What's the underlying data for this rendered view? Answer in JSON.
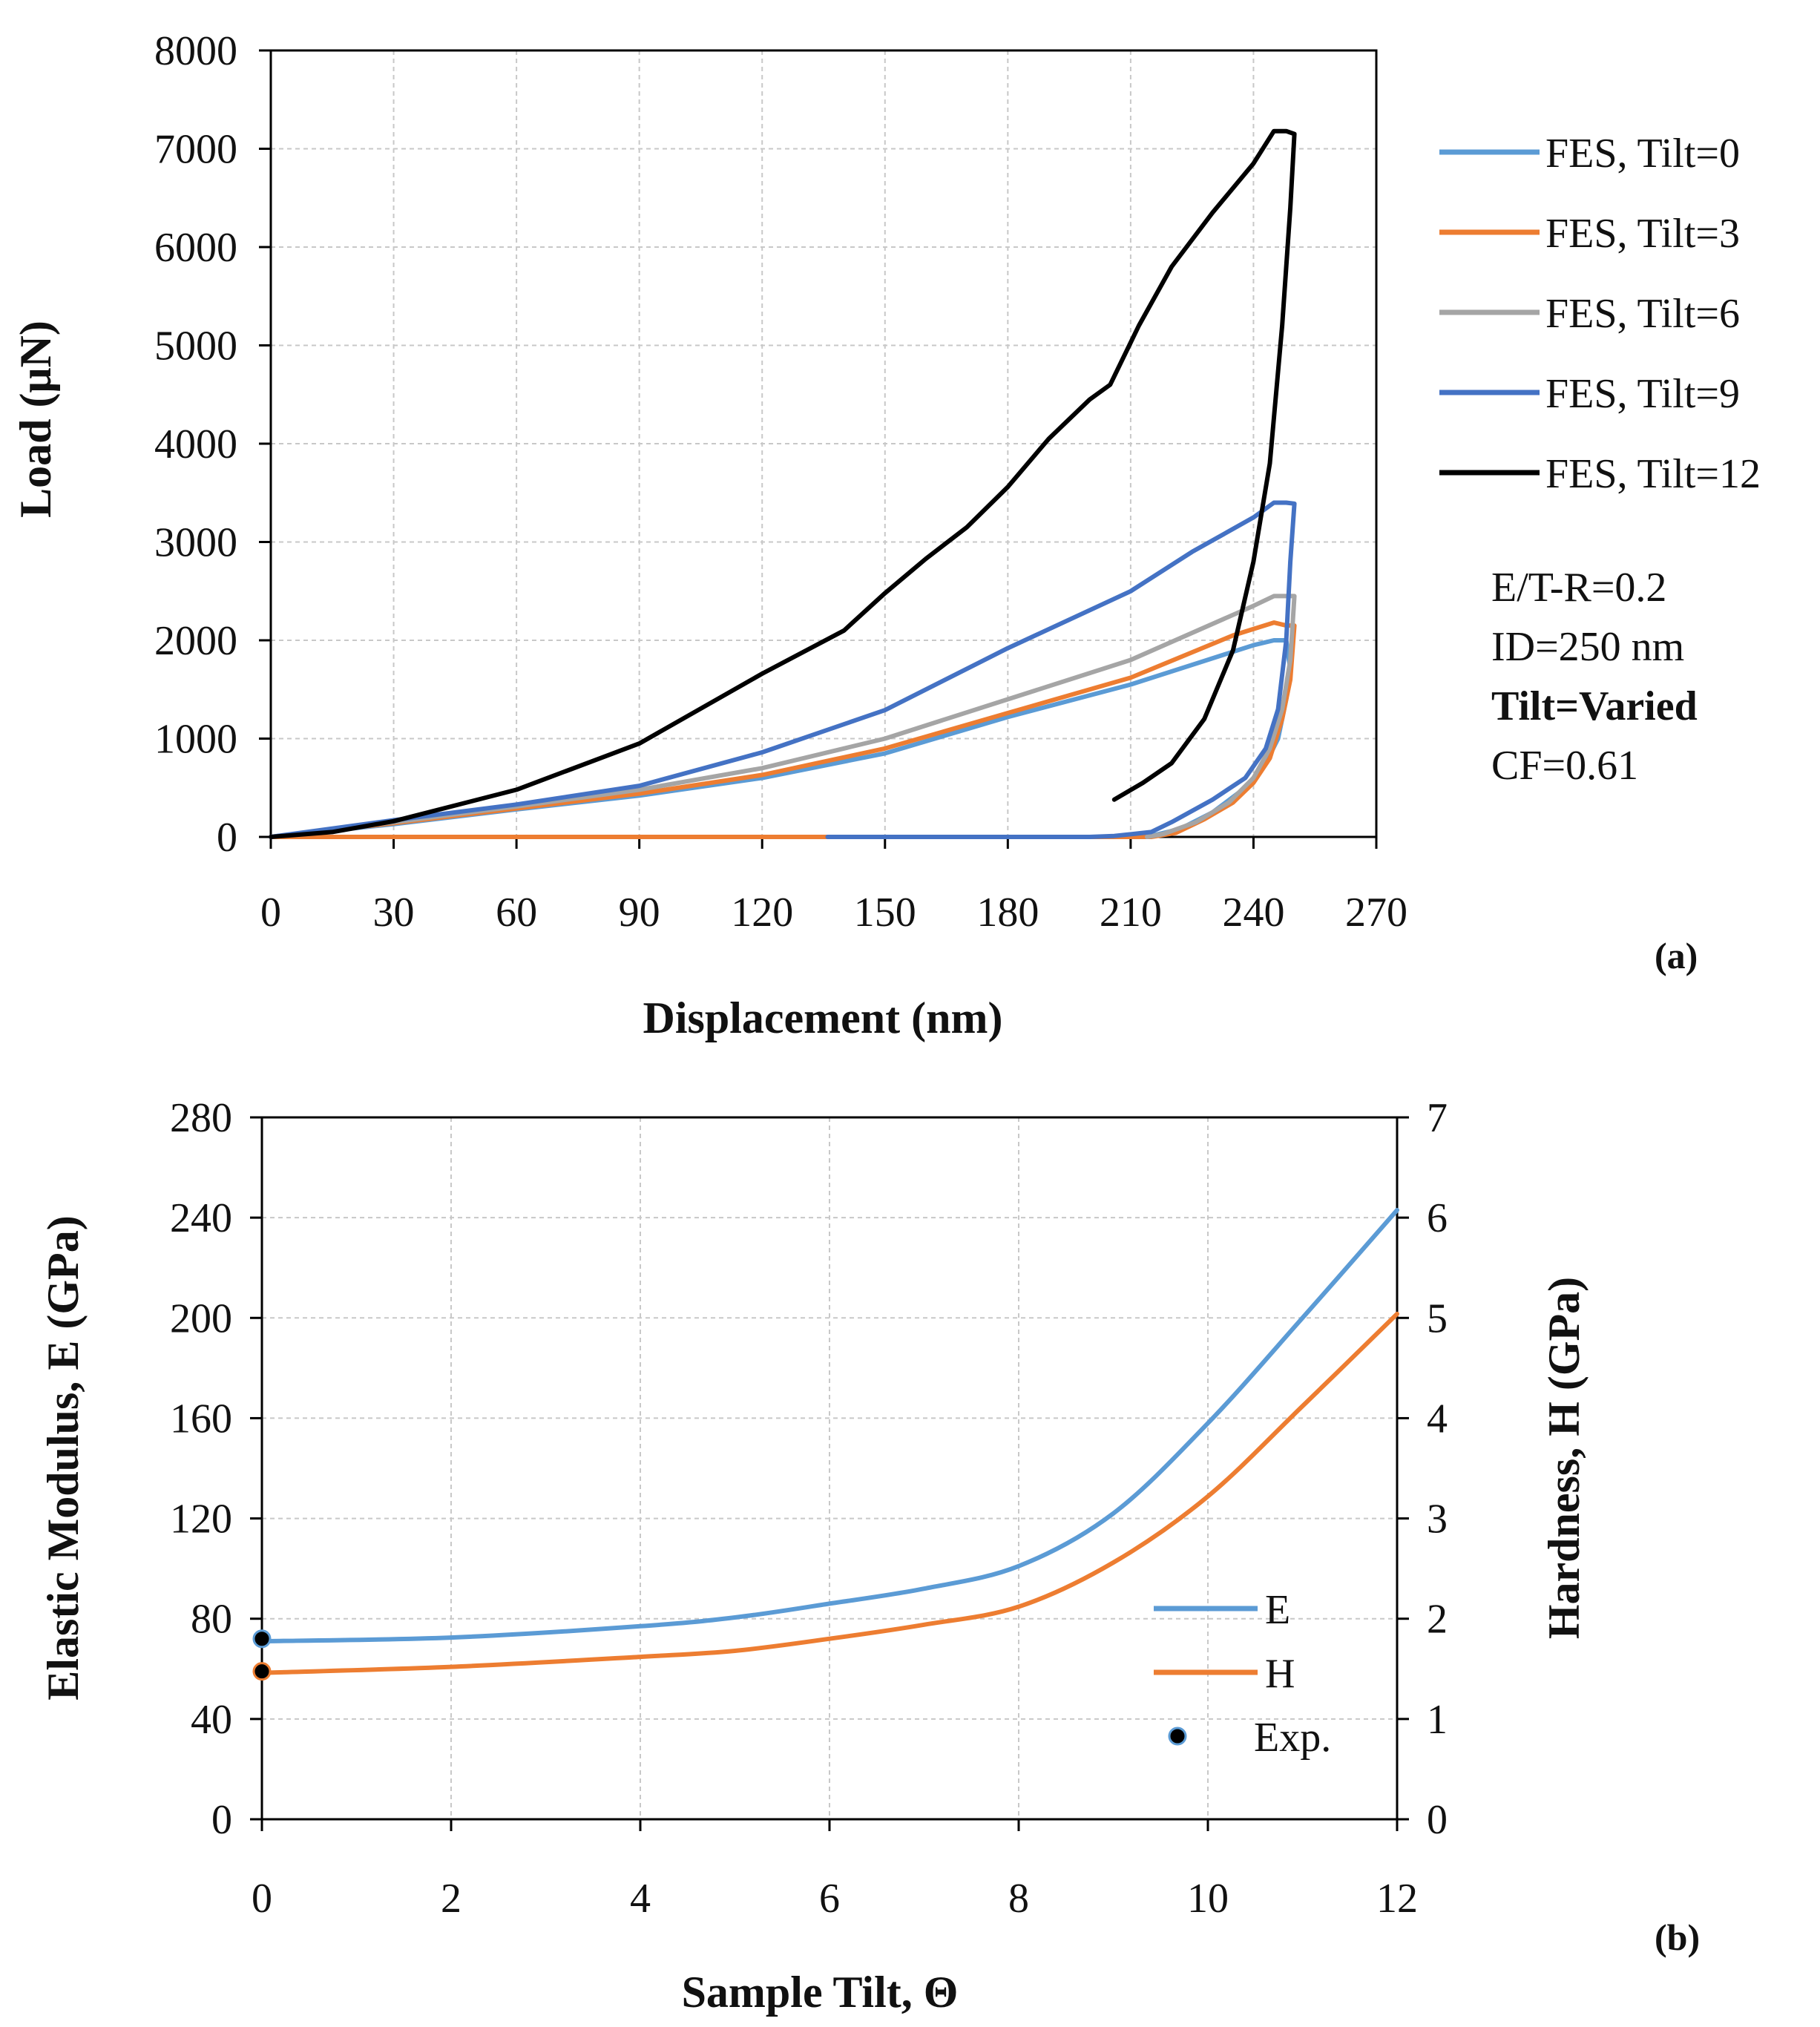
{
  "chart_data": [
    {
      "id": "a",
      "type": "line",
      "panel_label": "(a)",
      "xlabel": "Displacement (nm)",
      "ylabel": "Load (μN)",
      "xlim": [
        0,
        270
      ],
      "ylim": [
        0,
        8000
      ],
      "xticks": [
        "0",
        "30",
        "60",
        "90",
        "120",
        "150",
        "180",
        "210",
        "240",
        "270"
      ],
      "yticks": [
        "0",
        "1000",
        "2000",
        "3000",
        "4000",
        "5000",
        "6000",
        "7000",
        "8000"
      ],
      "grid": true,
      "legend_position": "right",
      "annotations": [
        {
          "text": "E/T-R=0.2",
          "bold": false
        },
        {
          "text": "ID=250 nm",
          "bold": false
        },
        {
          "text": "Tilt=Varied",
          "bold": true
        },
        {
          "text": "CF=0.61",
          "bold": false
        }
      ],
      "series": [
        {
          "name": "FES, Tilt=0",
          "color": "#5b9bd5",
          "points": [
            [
              0,
              0
            ],
            [
              30,
              130
            ],
            [
              60,
              280
            ],
            [
              90,
              420
            ],
            [
              120,
              600
            ],
            [
              150,
              850
            ],
            [
              180,
              1220
            ],
            [
              210,
              1550
            ],
            [
              240,
              1950
            ],
            [
              245,
              2000
            ],
            [
              248,
              2000
            ],
            [
              249,
              1700
            ],
            [
              248,
              1400
            ],
            [
              246,
              1000
            ],
            [
              243,
              750
            ],
            [
              238,
              500
            ],
            [
              230,
              250
            ],
            [
              222,
              80
            ],
            [
              216,
              20
            ],
            [
              210,
              0
            ],
            [
              136,
              0
            ]
          ]
        },
        {
          "name": "FES, Tilt=3",
          "color": "#ed7d31",
          "points": [
            [
              0,
              0
            ],
            [
              30,
              140
            ],
            [
              60,
              290
            ],
            [
              90,
              440
            ],
            [
              120,
              630
            ],
            [
              150,
              900
            ],
            [
              180,
              1260
            ],
            [
              210,
              1620
            ],
            [
              235,
              2050
            ],
            [
              245,
              2180
            ],
            [
              248,
              2150
            ],
            [
              250,
              2150
            ],
            [
              249,
              1600
            ],
            [
              247,
              1200
            ],
            [
              244,
              800
            ],
            [
              240,
              550
            ],
            [
              235,
              350
            ],
            [
              228,
              180
            ],
            [
              221,
              40
            ],
            [
              215,
              0
            ],
            [
              0,
              0
            ]
          ]
        },
        {
          "name": "FES, Tilt=6",
          "color": "#a5a5a5",
          "points": [
            [
              0,
              0
            ],
            [
              30,
              150
            ],
            [
              60,
              310
            ],
            [
              90,
              480
            ],
            [
              120,
              700
            ],
            [
              150,
              1000
            ],
            [
              180,
              1400
            ],
            [
              210,
              1800
            ],
            [
              240,
              2350
            ],
            [
              245,
              2450
            ],
            [
              248,
              2450
            ],
            [
              250,
              2450
            ],
            [
              249,
              1800
            ],
            [
              247,
              1300
            ],
            [
              244,
              900
            ],
            [
              240,
              600
            ],
            [
              234,
              350
            ],
            [
              226,
              150
            ],
            [
              218,
              30
            ],
            [
              214,
              0
            ]
          ]
        },
        {
          "name": "FES, Tilt=9",
          "color": "#4472c4",
          "points": [
            [
              0,
              0
            ],
            [
              30,
              170
            ],
            [
              60,
              330
            ],
            [
              90,
              520
            ],
            [
              120,
              860
            ],
            [
              150,
              1290
            ],
            [
              180,
              1920
            ],
            [
              210,
              2500
            ],
            [
              225,
              2900
            ],
            [
              240,
              3250
            ],
            [
              245,
              3400
            ],
            [
              248,
              3400
            ],
            [
              250,
              3390
            ],
            [
              249,
              2800
            ],
            [
              248,
              2000
            ],
            [
              246,
              1300
            ],
            [
              243,
              900
            ],
            [
              238,
              600
            ],
            [
              230,
              380
            ],
            [
              220,
              150
            ],
            [
              215,
              50
            ],
            [
              206,
              10
            ],
            [
              200,
              0
            ],
            [
              136,
              0
            ]
          ]
        },
        {
          "name": "FES, Tilt=12",
          "color": "#000000",
          "points": [
            [
              0,
              0
            ],
            [
              15,
              50
            ],
            [
              30,
              160
            ],
            [
              60,
              480
            ],
            [
              90,
              950
            ],
            [
              120,
              1660
            ],
            [
              140,
              2100
            ],
            [
              150,
              2480
            ],
            [
              160,
              2830
            ],
            [
              170,
              3150
            ],
            [
              180,
              3560
            ],
            [
              190,
              4050
            ],
            [
              200,
              4450
            ],
            [
              205,
              4600
            ],
            [
              212,
              5200
            ],
            [
              220,
              5800
            ],
            [
              230,
              6350
            ],
            [
              240,
              6850
            ],
            [
              245,
              7180
            ],
            [
              248,
              7180
            ],
            [
              250,
              7150
            ],
            [
              249,
              6400
            ],
            [
              247,
              5200
            ],
            [
              244,
              3800
            ],
            [
              240,
              2800
            ],
            [
              235,
              1900
            ],
            [
              228,
              1200
            ],
            [
              220,
              750
            ],
            [
              213,
              550
            ],
            [
              206,
              380
            ]
          ]
        }
      ]
    },
    {
      "id": "b",
      "type": "line",
      "panel_label": "(b)",
      "xlabel": "Sample Tilt, Θ",
      "ylabel": "Elastic Modulus, E (GPa)",
      "y2label": "Hardness, H (GPa)",
      "xlim": [
        0,
        12
      ],
      "ylim": [
        0,
        280
      ],
      "y2lim": [
        0,
        7
      ],
      "xticks": [
        "0",
        "2",
        "4",
        "6",
        "8",
        "10",
        "12"
      ],
      "yticks": [
        "0",
        "40",
        "80",
        "120",
        "160",
        "200",
        "240",
        "280"
      ],
      "y2ticks": [
        "0",
        "1",
        "2",
        "3",
        "4",
        "5",
        "6",
        "7"
      ],
      "grid": true,
      "legend_position": "bottom-right",
      "series": [
        {
          "name": "E",
          "color": "#5b9bd5",
          "axis": "left",
          "points": [
            [
              0,
              71
            ],
            [
              2,
              72.5
            ],
            [
              4,
              77
            ],
            [
              5,
              80.5
            ],
            [
              6,
              86
            ],
            [
              7,
              92
            ],
            [
              8,
              101
            ],
            [
              9,
              122
            ],
            [
              10,
              158
            ],
            [
              11,
              200
            ],
            [
              12,
              243
            ]
          ]
        },
        {
          "name": "H",
          "color": "#ed7d31",
          "axis": "right",
          "points": [
            [
              0,
              1.46
            ],
            [
              2,
              1.52
            ],
            [
              4,
              1.62
            ],
            [
              5,
              1.68
            ],
            [
              6,
              1.8
            ],
            [
              7,
              1.94
            ],
            [
              8,
              2.12
            ],
            [
              9,
              2.56
            ],
            [
              10,
              3.22
            ],
            [
              11,
              4.12
            ],
            [
              12,
              5.04
            ]
          ]
        }
      ],
      "experimental": {
        "name": "Exp.",
        "color": "#000000",
        "points": [
          [
            0,
            72
          ],
          [
            0,
            59
          ]
        ]
      }
    }
  ]
}
